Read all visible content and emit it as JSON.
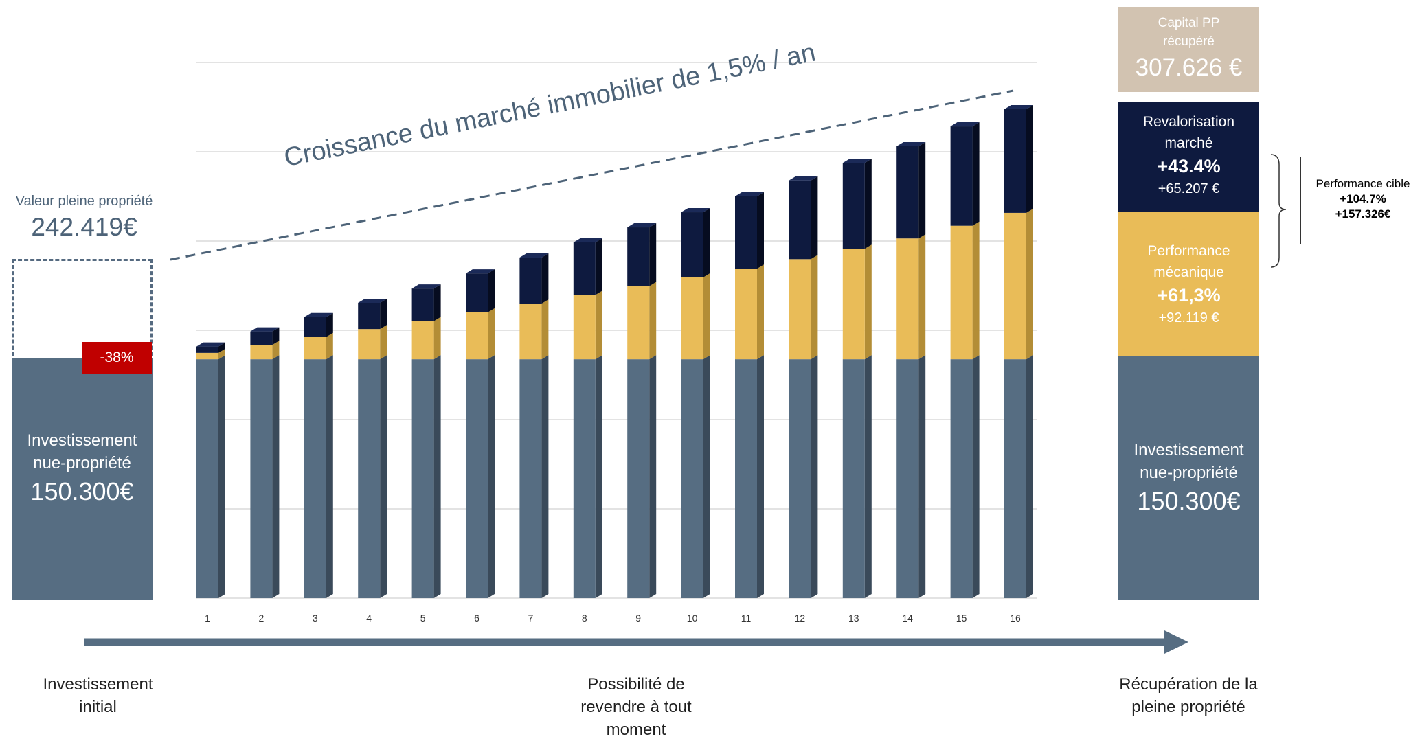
{
  "colors": {
    "base": "#566d82",
    "mechanical": "#e9bc58",
    "market": "#0e1a3f",
    "capital": "#d2c3b1",
    "badge": "#c00000",
    "trend": "#4d6378"
  },
  "left": {
    "pp_title": "Valeur pleine propriété",
    "pp_value": "242.419€",
    "badge": "-38%",
    "inv_line1": "Investissement",
    "inv_line2": "nue-propriété",
    "inv_value": "150.300€"
  },
  "trend_label": "Croissance du marché immobilier de 1,5% / an",
  "right": {
    "capital_line1": "Capital PP",
    "capital_line2": "récupéré",
    "capital_value": "307.626 €",
    "rev_line1": "Revalorisation",
    "rev_line2": "marché",
    "rev_pct": "+43.4%",
    "rev_value": "+65.207 €",
    "mec_line1": "Performance",
    "mec_line2": "mécanique",
    "mec_pct": "+61,3%",
    "mec_value": "+92.119 €",
    "inv_line1": "Investissement",
    "inv_line2": "nue-propriété",
    "inv_value": "150.300€"
  },
  "perf_cible": {
    "title": "Performance cible",
    "pct": "+104.7%",
    "value": "+157.326€"
  },
  "bottom": {
    "left_line1": "Investissement",
    "left_line2": "initial",
    "mid_line1": "Possibilité de",
    "mid_line2": "revendre à tout",
    "mid_line3": "moment",
    "right_line1": "Récupération de la",
    "right_line2": "pleine propriété"
  },
  "chart_data": {
    "type": "bar",
    "stacked": true,
    "grid": true,
    "categories": [
      "1",
      "2",
      "3",
      "4",
      "5",
      "6",
      "7",
      "8",
      "9",
      "10",
      "11",
      "12",
      "13",
      "14",
      "15",
      "16"
    ],
    "series": [
      {
        "values": [
          150300,
          150300,
          150300,
          150300,
          150300,
          150300,
          150300,
          150300,
          150300,
          150300,
          150300,
          150300,
          150300,
          150300,
          150300,
          150300
        ]
      },
      {
        "values": [
          4000,
          9000,
          14000,
          19000,
          24000,
          29500,
          35000,
          40500,
          46000,
          51500,
          57000,
          63000,
          69500,
          76000,
          84000,
          92119
        ]
      },
      {
        "values": [
          4000,
          8500,
          12500,
          16500,
          20500,
          24500,
          29000,
          33000,
          37000,
          41000,
          45500,
          49500,
          54000,
          58000,
          62500,
          65207
        ]
      }
    ],
    "ylim": [
      0,
      337000
    ]
  }
}
